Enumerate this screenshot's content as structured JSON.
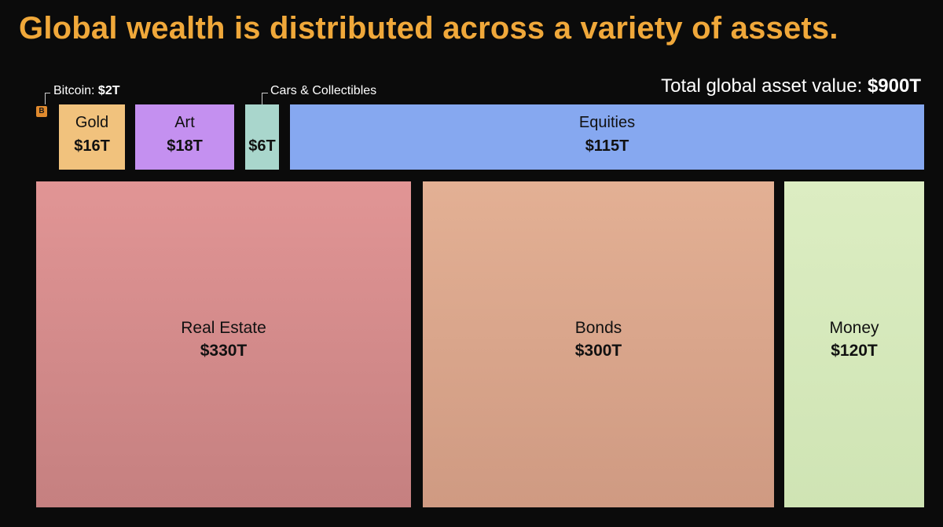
{
  "title": "Global wealth is distributed across a variety of assets.",
  "total": {
    "label": "Total global asset value:",
    "value": "$900T"
  },
  "callouts": {
    "bitcoin_label": "Bitcoin:",
    "bitcoin_value": "$2T",
    "cars_label": "Cars & Collectibles"
  },
  "icons": {
    "bitcoin_icon": "bitcoin-icon",
    "bitcoin_glyph": "B"
  },
  "colors": {
    "title": "#f0a83a",
    "background": "#0b0b0b",
    "bitcoin": "#e08a2e"
  },
  "chart_data": {
    "type": "treemap",
    "title": "Global wealth is distributed across a variety of assets.",
    "unit": "trillion USD",
    "total": 900,
    "items": [
      {
        "name": "Bitcoin",
        "value": 2,
        "value_label": "$2T",
        "color": "#e08a2e"
      },
      {
        "name": "Gold",
        "value": 16,
        "value_label": "$16T",
        "color": "#f1c27d"
      },
      {
        "name": "Art",
        "value": 18,
        "value_label": "$18T",
        "color": "#c490f0"
      },
      {
        "name": "Cars & Collectibles",
        "value": 6,
        "value_label": "$6T",
        "color": "#a9d6cc"
      },
      {
        "name": "Equities",
        "value": 115,
        "value_label": "$115T",
        "color": "#86a8f0"
      },
      {
        "name": "Real Estate",
        "value": 330,
        "value_label": "$330T",
        "color": "#d98b8b"
      },
      {
        "name": "Bonds",
        "value": 300,
        "value_label": "$300T",
        "color": "#dba28a"
      },
      {
        "name": "Money",
        "value": 120,
        "value_label": "$120T",
        "color": "#d5e9bb"
      }
    ]
  }
}
